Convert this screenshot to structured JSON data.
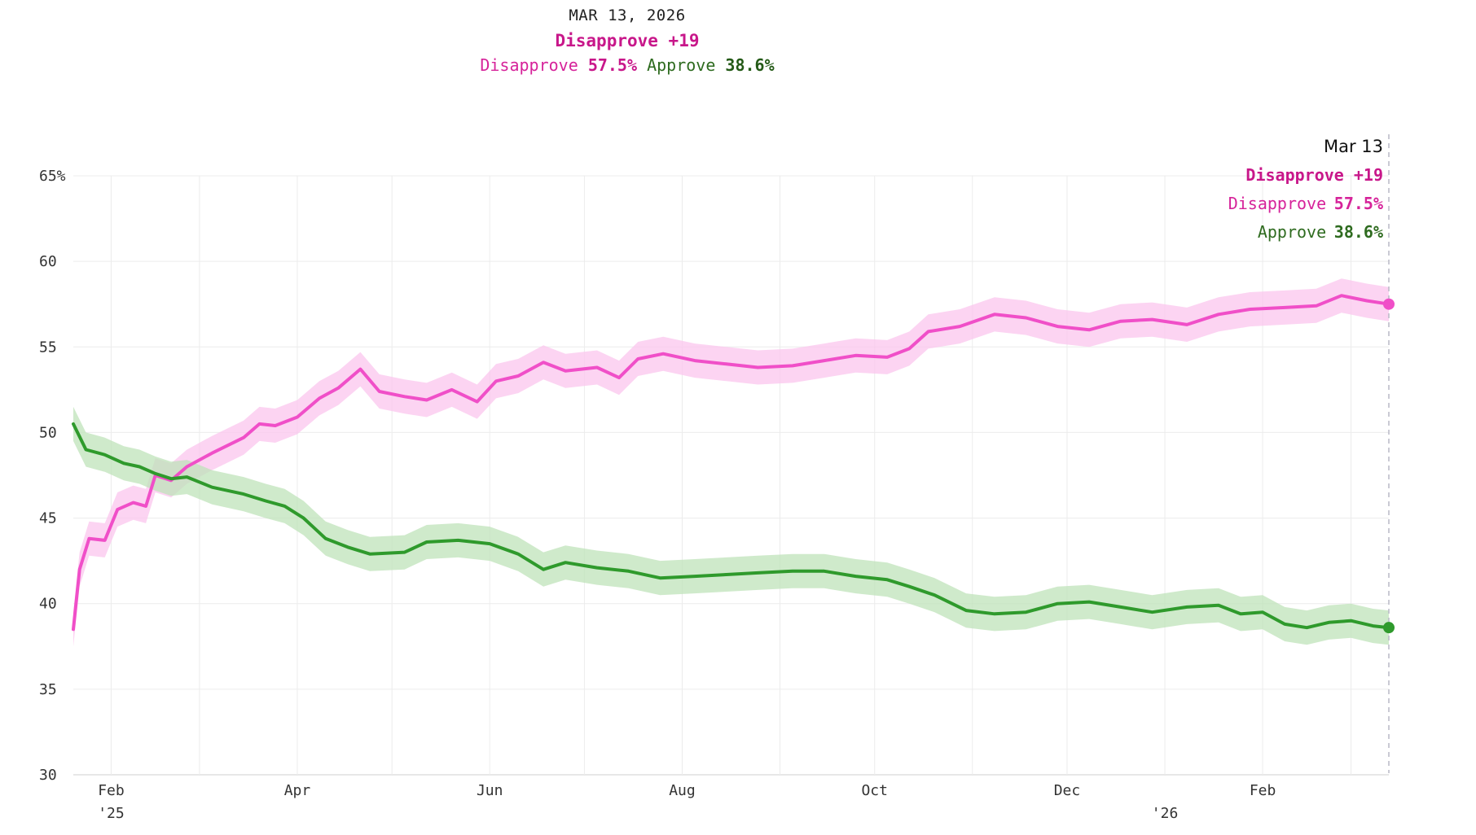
{
  "header": {
    "date": "MAR 13, 2026",
    "net_label": "Disapprove +19",
    "disapprove_label": "Disapprove",
    "disapprove_value": "57.5%",
    "approve_label": "Approve",
    "approve_value": "38.6%"
  },
  "tooltip": {
    "date": "Mar 13",
    "net_label": "Disapprove +19",
    "disapprove_label": "Disapprove",
    "disapprove_value": "57.5%",
    "approve_label": "Approve",
    "approve_value": "38.6%"
  },
  "colors": {
    "disapprove_line": "#f04fc8",
    "disapprove_band": "#fbc6ee",
    "approve_line": "#2f9a2c",
    "approve_band": "#bfe3b9",
    "net_text": "#c8178a"
  },
  "chart_data": {
    "type": "line",
    "x_start": "2025-01-20",
    "x_end": "2026-03-13",
    "ylim": [
      30,
      65
    ],
    "y_ticks": [
      "65%",
      "60",
      "55",
      "50",
      "45",
      "40",
      "35",
      "30"
    ],
    "x_ticks": [
      {
        "date": "2025-02-01",
        "label": "Feb",
        "sublabel": "'25"
      },
      {
        "date": "2025-04-01",
        "label": "Apr",
        "sublabel": ""
      },
      {
        "date": "2025-06-01",
        "label": "Jun",
        "sublabel": ""
      },
      {
        "date": "2025-08-01",
        "label": "Aug",
        "sublabel": ""
      },
      {
        "date": "2025-10-01",
        "label": "Oct",
        "sublabel": ""
      },
      {
        "date": "2025-12-01",
        "label": "Dec",
        "sublabel": ""
      },
      {
        "date": "2026-02-01",
        "label": "Feb",
        "sublabel": ""
      }
    ],
    "year_labels": [
      {
        "date": "2026-01-01",
        "label": "'26"
      }
    ],
    "grid": true,
    "band_halfwidth": 1.0,
    "series": [
      {
        "name": "Disapprove",
        "points": [
          [
            "2025-01-20",
            38.5
          ],
          [
            "2025-01-22",
            42.0
          ],
          [
            "2025-01-25",
            43.8
          ],
          [
            "2025-01-30",
            43.7
          ],
          [
            "2025-02-03",
            45.5
          ],
          [
            "2025-02-08",
            45.9
          ],
          [
            "2025-02-12",
            45.7
          ],
          [
            "2025-02-15",
            47.5
          ],
          [
            "2025-02-20",
            47.2
          ],
          [
            "2025-02-25",
            48.0
          ],
          [
            "2025-03-05",
            48.8
          ],
          [
            "2025-03-15",
            49.7
          ],
          [
            "2025-03-20",
            50.5
          ],
          [
            "2025-03-25",
            50.4
          ],
          [
            "2025-04-01",
            50.9
          ],
          [
            "2025-04-08",
            52.0
          ],
          [
            "2025-04-14",
            52.6
          ],
          [
            "2025-04-21",
            53.7
          ],
          [
            "2025-04-27",
            52.4
          ],
          [
            "2025-05-05",
            52.1
          ],
          [
            "2025-05-12",
            51.9
          ],
          [
            "2025-05-20",
            52.5
          ],
          [
            "2025-05-28",
            51.8
          ],
          [
            "2025-06-03",
            53.0
          ],
          [
            "2025-06-10",
            53.3
          ],
          [
            "2025-06-18",
            54.1
          ],
          [
            "2025-06-25",
            53.6
          ],
          [
            "2025-07-05",
            53.8
          ],
          [
            "2025-07-12",
            53.2
          ],
          [
            "2025-07-18",
            54.3
          ],
          [
            "2025-07-26",
            54.6
          ],
          [
            "2025-08-05",
            54.2
          ],
          [
            "2025-08-15",
            54.0
          ],
          [
            "2025-08-25",
            53.8
          ],
          [
            "2025-09-05",
            53.9
          ],
          [
            "2025-09-15",
            54.2
          ],
          [
            "2025-09-25",
            54.5
          ],
          [
            "2025-10-05",
            54.4
          ],
          [
            "2025-10-12",
            54.9
          ],
          [
            "2025-10-18",
            55.9
          ],
          [
            "2025-10-28",
            56.2
          ],
          [
            "2025-11-08",
            56.9
          ],
          [
            "2025-11-18",
            56.7
          ],
          [
            "2025-11-28",
            56.2
          ],
          [
            "2025-12-08",
            56.0
          ],
          [
            "2025-12-18",
            56.5
          ],
          [
            "2025-12-28",
            56.6
          ],
          [
            "2026-01-08",
            56.3
          ],
          [
            "2026-01-18",
            56.9
          ],
          [
            "2026-01-28",
            57.2
          ],
          [
            "2026-02-08",
            57.3
          ],
          [
            "2026-02-18",
            57.4
          ],
          [
            "2026-02-26",
            58.0
          ],
          [
            "2026-03-06",
            57.7
          ],
          [
            "2026-03-13",
            57.5
          ]
        ]
      },
      {
        "name": "Approve",
        "points": [
          [
            "2025-01-20",
            50.5
          ],
          [
            "2025-01-24",
            49.0
          ],
          [
            "2025-01-30",
            48.7
          ],
          [
            "2025-02-05",
            48.2
          ],
          [
            "2025-02-10",
            48.0
          ],
          [
            "2025-02-15",
            47.6
          ],
          [
            "2025-02-20",
            47.3
          ],
          [
            "2025-02-25",
            47.4
          ],
          [
            "2025-03-05",
            46.8
          ],
          [
            "2025-03-15",
            46.4
          ],
          [
            "2025-03-22",
            46.0
          ],
          [
            "2025-03-28",
            45.7
          ],
          [
            "2025-04-03",
            45.0
          ],
          [
            "2025-04-10",
            43.8
          ],
          [
            "2025-04-17",
            43.3
          ],
          [
            "2025-04-24",
            42.9
          ],
          [
            "2025-05-05",
            43.0
          ],
          [
            "2025-05-12",
            43.6
          ],
          [
            "2025-05-22",
            43.7
          ],
          [
            "2025-06-01",
            43.5
          ],
          [
            "2025-06-10",
            42.9
          ],
          [
            "2025-06-18",
            42.0
          ],
          [
            "2025-06-25",
            42.4
          ],
          [
            "2025-07-05",
            42.1
          ],
          [
            "2025-07-15",
            41.9
          ],
          [
            "2025-07-25",
            41.5
          ],
          [
            "2025-08-05",
            41.6
          ],
          [
            "2025-08-15",
            41.7
          ],
          [
            "2025-08-25",
            41.8
          ],
          [
            "2025-09-05",
            41.9
          ],
          [
            "2025-09-15",
            41.9
          ],
          [
            "2025-09-25",
            41.6
          ],
          [
            "2025-10-05",
            41.4
          ],
          [
            "2025-10-12",
            41.0
          ],
          [
            "2025-10-20",
            40.5
          ],
          [
            "2025-10-30",
            39.6
          ],
          [
            "2025-11-08",
            39.4
          ],
          [
            "2025-11-18",
            39.5
          ],
          [
            "2025-11-28",
            40.0
          ],
          [
            "2025-12-08",
            40.1
          ],
          [
            "2025-12-18",
            39.8
          ],
          [
            "2025-12-28",
            39.5
          ],
          [
            "2026-01-08",
            39.8
          ],
          [
            "2026-01-18",
            39.9
          ],
          [
            "2026-01-25",
            39.4
          ],
          [
            "2026-02-01",
            39.5
          ],
          [
            "2026-02-08",
            38.8
          ],
          [
            "2026-02-15",
            38.6
          ],
          [
            "2026-02-22",
            38.9
          ],
          [
            "2026-03-01",
            39.0
          ],
          [
            "2026-03-08",
            38.7
          ],
          [
            "2026-03-13",
            38.6
          ]
        ]
      }
    ]
  }
}
